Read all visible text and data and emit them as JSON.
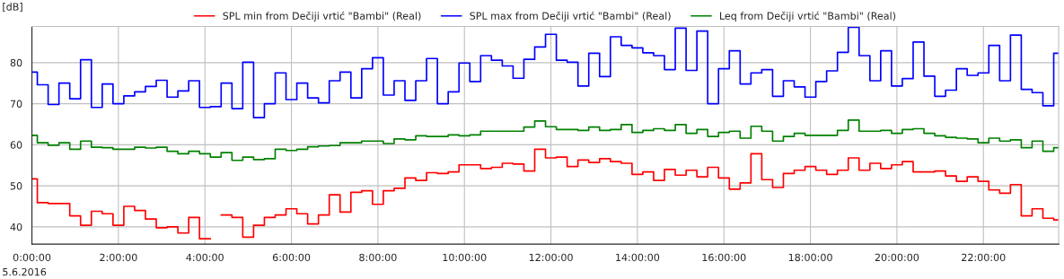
{
  "chart_data": {
    "type": "step",
    "ylabel": "[dB]",
    "x": [
      0,
      0.125,
      0.375,
      0.625,
      0.875,
      1.125,
      1.375,
      1.625,
      1.875,
      2.125,
      2.375,
      2.625,
      2.875,
      3.125,
      3.375,
      3.625,
      3.875,
      4.125,
      4.375,
      4.625,
      4.875,
      5.125,
      5.375,
      5.625,
      5.875,
      6.125,
      6.375,
      6.625,
      6.875,
      7.125,
      7.375,
      7.625,
      7.875,
      8.125,
      8.375,
      8.625,
      8.875,
      9.125,
      9.375,
      9.625,
      9.875,
      10.125,
      10.375,
      10.625,
      10.875,
      11.125,
      11.375,
      11.625,
      11.875,
      12.125,
      12.375,
      12.625,
      12.875,
      13.125,
      13.375,
      13.625,
      13.875,
      14.125,
      14.375,
      14.625,
      14.875,
      15.125,
      15.375,
      15.625,
      15.875,
      16.125,
      16.375,
      16.625,
      16.875,
      17.125,
      17.375,
      17.625,
      17.875,
      18.125,
      18.375,
      18.625,
      18.875,
      19.125,
      19.375,
      19.625,
      19.875,
      20.125,
      20.375,
      20.625,
      20.875,
      21.125,
      21.375,
      21.625,
      21.875,
      22.125,
      22.375,
      22.625,
      22.875,
      23.125,
      23.375,
      23.625
    ],
    "series": [
      {
        "name": "SPL min from Dečiji vrtić \"Bambi\" (Real)",
        "color": "#ff0000",
        "values": [
          51.7,
          45.9,
          45.7,
          45.7,
          42.7,
          40.4,
          43.8,
          43.2,
          40.4,
          45.0,
          44.0,
          41.9,
          39.8,
          40.0,
          38.5,
          42.3,
          37.1,
          null,
          42.9,
          42.3,
          37.5,
          40.4,
          42.3,
          42.9,
          44.4,
          43.2,
          40.7,
          42.9,
          47.8,
          43.6,
          48.4,
          48.8,
          45.5,
          48.8,
          49.4,
          51.9,
          51.3,
          53.2,
          53.0,
          53.4,
          55.1,
          55.1,
          54.2,
          54.5,
          55.5,
          55.3,
          53.6,
          58.9,
          56.8,
          57.0,
          54.7,
          56.3,
          55.7,
          56.6,
          55.9,
          55.5,
          52.8,
          53.4,
          51.3,
          54.0,
          52.6,
          53.8,
          52.2,
          54.5,
          51.9,
          49.2,
          50.7,
          57.8,
          51.5,
          49.6,
          53.0,
          53.8,
          54.7,
          53.8,
          52.8,
          53.8,
          56.8,
          53.8,
          55.5,
          54.2,
          55.1,
          55.9,
          53.4,
          53.4,
          53.6,
          52.4,
          51.1,
          52.2,
          51.1,
          49.0,
          48.2,
          50.3,
          42.7,
          44.4,
          42.1,
          41.7
        ]
      },
      {
        "name": "SPL max from Dečiji vrtić \"Bambi\" (Real)",
        "color": "#0000ff",
        "values": [
          77.7,
          74.6,
          69.8,
          75.0,
          71.2,
          80.7,
          69.1,
          74.8,
          70.0,
          71.9,
          72.9,
          74.2,
          75.7,
          71.6,
          73.1,
          75.6,
          69.1,
          69.3,
          75.0,
          68.8,
          80.1,
          66.6,
          70.0,
          77.5,
          71.0,
          75.0,
          71.4,
          70.2,
          75.6,
          77.7,
          71.4,
          78.5,
          81.2,
          72.1,
          75.6,
          70.8,
          75.6,
          81.0,
          70.0,
          72.9,
          79.9,
          75.4,
          81.7,
          80.6,
          79.2,
          76.2,
          80.8,
          83.8,
          86.9,
          80.6,
          80.1,
          74.3,
          82.3,
          76.6,
          86.3,
          84.2,
          83.6,
          82.4,
          81.7,
          78.3,
          88.4,
          78.1,
          87.7,
          70.0,
          78.5,
          82.9,
          74.8,
          77.5,
          78.3,
          71.8,
          75.6,
          74.1,
          71.6,
          75.4,
          78.0,
          82.5,
          88.6,
          81.7,
          75.6,
          82.9,
          74.3,
          76.1,
          85.0,
          76.7,
          71.8,
          73.3,
          78.5,
          76.9,
          77.5,
          84.2,
          75.6,
          86.7,
          73.5,
          72.7,
          69.5,
          82.3
        ]
      },
      {
        "name": "Leq from Dečiji vrtić \"Bambi\" (Real)",
        "color": "#008000",
        "values": [
          62.3,
          60.5,
          59.9,
          60.5,
          58.9,
          60.9,
          59.4,
          59.3,
          58.9,
          58.9,
          59.4,
          59.2,
          59.4,
          58.4,
          57.8,
          58.4,
          57.8,
          57.0,
          58.1,
          56.2,
          57.0,
          56.4,
          56.6,
          58.9,
          58.6,
          58.9,
          59.5,
          59.7,
          59.8,
          60.5,
          60.5,
          60.9,
          60.9,
          60.3,
          61.4,
          61.2,
          62.2,
          62.0,
          62.0,
          62.4,
          62.2,
          62.4,
          63.3,
          63.3,
          63.3,
          63.3,
          64.3,
          65.8,
          64.4,
          63.7,
          63.7,
          63.5,
          64.3,
          63.5,
          63.7,
          64.9,
          63.0,
          63.5,
          63.9,
          63.5,
          64.9,
          62.8,
          63.7,
          62.0,
          63.0,
          63.3,
          61.6,
          64.5,
          63.3,
          60.9,
          62.0,
          62.8,
          62.3,
          62.3,
          62.3,
          63.5,
          66.0,
          63.3,
          63.3,
          63.5,
          62.8,
          63.7,
          63.9,
          62.8,
          62.2,
          61.8,
          61.6,
          61.4,
          60.5,
          61.6,
          60.9,
          61.2,
          59.3,
          60.9,
          58.4,
          59.3
        ]
      }
    ],
    "xlim": [
      0,
      23.74
    ],
    "xticks": [
      {
        "value": 0,
        "label": "0:00:00"
      },
      {
        "value": 2,
        "label": "2:00:00"
      },
      {
        "value": 4,
        "label": "4:00:00"
      },
      {
        "value": 6,
        "label": "6:00:00"
      },
      {
        "value": 8,
        "label": "8:00:00"
      },
      {
        "value": 10,
        "label": "10:00:00"
      },
      {
        "value": 12,
        "label": "12:00:00"
      },
      {
        "value": 14,
        "label": "14:00:00"
      },
      {
        "value": 16,
        "label": "16:00:00"
      },
      {
        "value": 18,
        "label": "18:00:00"
      },
      {
        "value": 20,
        "label": "20:00:00"
      },
      {
        "value": 22,
        "label": "22:00:00"
      }
    ],
    "ylim": [
      35.8,
      88.8
    ],
    "yticks": [
      40,
      50,
      60,
      70,
      80
    ],
    "grid": true,
    "legend": "top",
    "line_style": "solid",
    "annotations": [
      "5.6.2016"
    ]
  }
}
